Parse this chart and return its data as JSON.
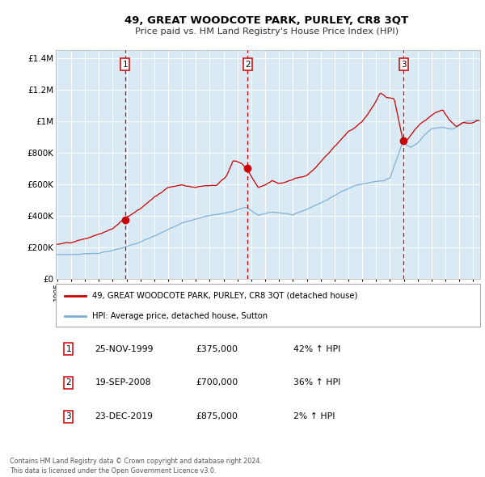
{
  "title": "49, GREAT WOODCOTE PARK, PURLEY, CR8 3QT",
  "subtitle": "Price paid vs. HM Land Registry's House Price Index (HPI)",
  "fig_bg_color": "#ffffff",
  "plot_bg_color": "#daeaf5",
  "grid_color": "#ffffff",
  "red_line_color": "#cc0000",
  "blue_line_color": "#7aadd4",
  "sale_marker_color": "#cc0000",
  "vline_color": "#cc0000",
  "ylim": [
    0,
    1450000
  ],
  "yticks": [
    0,
    200000,
    400000,
    600000,
    800000,
    1000000,
    1200000,
    1400000
  ],
  "ytick_labels": [
    "£0",
    "£200K",
    "£400K",
    "£600K",
    "£800K",
    "£1M",
    "£1.2M",
    "£1.4M"
  ],
  "xstart": 1995,
  "xend": 2025,
  "sale1_year": 1999.9,
  "sale1_price": 375000,
  "sale2_year": 2008.72,
  "sale2_price": 700000,
  "sale3_year": 2019.98,
  "sale3_price": 875000,
  "legend_line1": "49, GREAT WOODCOTE PARK, PURLEY, CR8 3QT (detached house)",
  "legend_line2": "HPI: Average price, detached house, Sutton",
  "footer1": "Contains HM Land Registry data © Crown copyright and database right 2024.",
  "footer2": "This data is licensed under the Open Government Licence v3.0.",
  "table_row1": [
    "1",
    "25-NOV-1999",
    "£375,000",
    "42% ↑ HPI"
  ],
  "table_row2": [
    "2",
    "19-SEP-2008",
    "£700,000",
    "36% ↑ HPI"
  ],
  "table_row3": [
    "3",
    "23-DEC-2019",
    "£875,000",
    "2% ↑ HPI"
  ],
  "hpi_waypoints_x": [
    1995.0,
    1996.5,
    1998.0,
    1999.5,
    2001.0,
    2002.5,
    2004.0,
    2005.5,
    2007.0,
    2008.0,
    2008.6,
    2009.5,
    2010.5,
    2012.0,
    2013.0,
    2014.5,
    2015.5,
    2016.5,
    2017.5,
    2018.5,
    2019.0,
    2019.9,
    2020.5,
    2021.0,
    2021.5,
    2022.0,
    2022.8,
    2023.5,
    2024.5,
    2025.5
  ],
  "hpi_waypoints_y": [
    155000,
    158000,
    168000,
    195000,
    240000,
    295000,
    355000,
    390000,
    420000,
    445000,
    460000,
    410000,
    430000,
    415000,
    450000,
    510000,
    560000,
    600000,
    615000,
    630000,
    650000,
    870000,
    840000,
    870000,
    920000,
    960000,
    970000,
    960000,
    1010000,
    1020000
  ],
  "red_waypoints_x": [
    1995.0,
    1996.0,
    1997.0,
    1998.0,
    1999.0,
    1999.9,
    2001.0,
    2002.0,
    2003.0,
    2004.0,
    2005.0,
    2005.5,
    2006.0,
    2006.5,
    2007.2,
    2007.7,
    2008.3,
    2008.72,
    2009.0,
    2009.5,
    2010.0,
    2010.5,
    2011.0,
    2011.5,
    2012.0,
    2012.5,
    2013.0,
    2013.5,
    2014.0,
    2014.8,
    2015.3,
    2016.0,
    2016.5,
    2017.0,
    2017.5,
    2018.0,
    2018.3,
    2018.8,
    2019.3,
    2019.98,
    2020.3,
    2020.8,
    2021.3,
    2021.8,
    2022.3,
    2022.8,
    2023.3,
    2023.8,
    2024.3,
    2024.8,
    2025.3
  ],
  "red_waypoints_y": [
    220000,
    225000,
    245000,
    275000,
    310000,
    375000,
    435000,
    510000,
    570000,
    595000,
    580000,
    590000,
    595000,
    600000,
    660000,
    760000,
    740000,
    700000,
    660000,
    590000,
    605000,
    635000,
    615000,
    625000,
    640000,
    655000,
    670000,
    710000,
    760000,
    840000,
    890000,
    960000,
    985000,
    1020000,
    1080000,
    1150000,
    1200000,
    1170000,
    1160000,
    875000,
    900000,
    960000,
    1000000,
    1030000,
    1060000,
    1080000,
    1010000,
    970000,
    1000000,
    990000,
    1010000
  ]
}
